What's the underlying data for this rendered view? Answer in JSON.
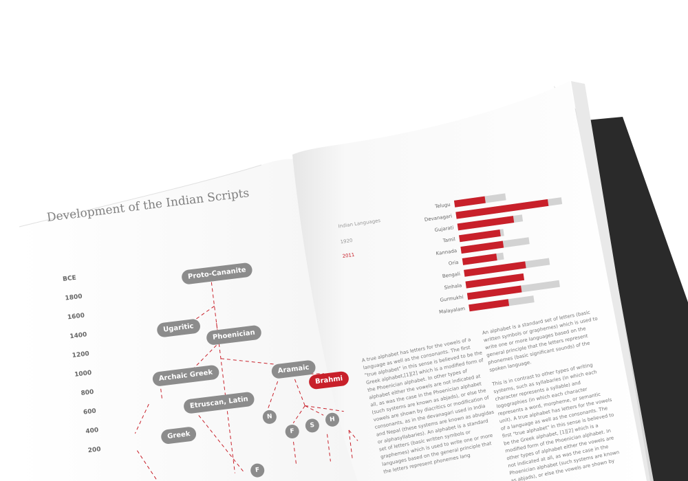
{
  "left_page": {
    "title": "Development of the Indian Scripts",
    "axis": [
      "BCE",
      "1800",
      "1600",
      "1400",
      "1200",
      "1000",
      "800",
      "600",
      "400",
      "200"
    ],
    "nodes": {
      "proto_cananite": "Proto-Cananite",
      "ugaritic": "Ugaritic",
      "phoenician": "Phoenician",
      "archaic_greek": "Archaic Greek",
      "aramaic": "Aramaic",
      "brahmi": "Brahmi",
      "etruscan_latin": "Etruscan, Latin",
      "greek": "Greek"
    },
    "circles": {
      "n": "N",
      "f1": "F",
      "s": "S",
      "h": "H",
      "f2": "F"
    }
  },
  "chart_data": {
    "type": "bar",
    "categories": [
      "Telugu",
      "Devanagari",
      "Gujarati",
      "Tamil",
      "Kannada",
      "Oria",
      "Bengali",
      "Sinhala",
      "Gurmukhi",
      "Malayalam"
    ],
    "series": [
      {
        "name": "1920",
        "values": [
          75,
          155,
          95,
          65,
          100,
          60,
          125,
          75,
          135,
          95
        ]
      },
      {
        "name": "2011",
        "values": [
          45,
          135,
          82,
          60,
          62,
          50,
          90,
          85,
          79,
          58
        ]
      }
    ],
    "title": "Indian Languages",
    "colors": {
      "1920": "#d3d3d3",
      "2011": "#c8202a"
    }
  },
  "right_page": {
    "column1": "A true alphabet has letters for the vowels of a language as well as the consonants. The first \"true alphabet\" in this sense is believed to be the Greek alphabet,[1][2] which is a modified form of the Phoenician alphabet. In other types of alphabet either the vowels are not indicated at all, as was the case in the Phoenician alphabet (such systems are known as abjads), or else the vowels are shown by diacritics or modification of consonants, as in the devanagari used in India and Nepal (these systems are known as abugidas or alphasyllabaries). An alphabet is a standard set of letters (basic written symbols or graphemes) which is used to write one or more languages based on the general principle that the letters represent phonemes lang",
    "column2_p1": "An alphabet is a standard set of letters (basic written symbols or graphemes) which is used to write one or more languages based on the general principle that the letters represent phonemes (basic significant sounds) of the spoken language.",
    "column2_p2": "This is in contrast to other types of writing systems, such as syllabaries (in which each character represents a syllable) and logographies (in which each character represents a word, morpheme, or semantic unit). A true alphabet has letters for the vowels of a language as well as the consonants. The first \"true alphabet\" in this sense is believed to be the Greek alphabet, [1][2] which is a modified form of the Phoenician alphabet. In other types of alphabet either the vowels are not indicated at all, as was the case in the Phoenician alphabet (such systems are known as abjads), or else the vowels are shown by"
  }
}
